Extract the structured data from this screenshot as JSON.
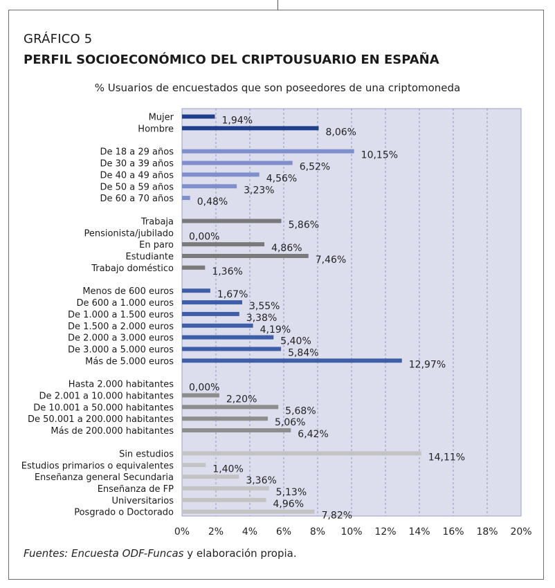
{
  "figure": {
    "number": "GRÁFICO 5",
    "title": "PERFIL SOCIOECONÓMICO DEL CRIPTOUSUARIO EN ESPAÑA",
    "subtitle": "% Usuarios de encuestados que son poseedores de una criptomoneda",
    "source_italic": "Fuentes: Encuesta ODF-Funcas",
    "source_rest": " y elaboración propia."
  },
  "chart_data": {
    "type": "bar",
    "orientation": "horizontal",
    "title": "% Usuarios de encuestados que son poseedores de una criptomoneda",
    "xlabel": "",
    "ylabel": "",
    "xlim": [
      0,
      20
    ],
    "x_ticks": [
      "0%",
      "2%",
      "4%",
      "6%",
      "8%",
      "10%",
      "12%",
      "14%",
      "16%",
      "18%",
      "20%"
    ],
    "grid": "vertical dashed",
    "value_format": "comma decimal, percent",
    "colors": {
      "plot_background": "#dcdeee",
      "grid": "#8e95bf",
      "sex": "#1f3f8c",
      "age": "#7f8fcc",
      "employment": "#7a7a7a",
      "income": "#3f5ea8",
      "municipality": "#8d8d8d",
      "education": "#c3c3c3"
    },
    "groups": [
      {
        "color_key": "sex",
        "categories": [
          "Mujer",
          "Hombre"
        ],
        "values": [
          1.94,
          8.06
        ]
      },
      {
        "color_key": "age",
        "categories": [
          "De 18 a 29 años",
          "De 30 a 39 años",
          "De 40 a 49 años",
          "De 50 a 59 años",
          "De 60 a 70 años"
        ],
        "values": [
          10.15,
          6.52,
          4.56,
          3.23,
          0.48
        ]
      },
      {
        "color_key": "employment",
        "categories": [
          "Trabaja",
          "Pensionista/jubilado",
          "En paro",
          "Estudiante",
          "Trabajo doméstico"
        ],
        "values": [
          5.86,
          0.0,
          4.86,
          7.46,
          1.36
        ]
      },
      {
        "color_key": "income",
        "categories": [
          "Menos de 600 euros",
          "De 600 a 1.000 euros",
          "De 1.000 a 1.500 euros",
          "De 1.500 a 2.000 euros",
          "De 2.000 a 3.000 euros",
          "De 3.000 a 5.000 euros",
          "Más de 5.000 euros"
        ],
        "values": [
          1.67,
          3.55,
          3.38,
          4.19,
          5.4,
          5.84,
          12.97
        ]
      },
      {
        "color_key": "municipality",
        "categories": [
          "Hasta 2.000 habitantes",
          "De 2.001 a 10.000 habitantes",
          "De 10.001 a 50.000 habitantes",
          "De 50.001 a 200.000 habitantes",
          "Más de 200.000 habitantes"
        ],
        "values": [
          0.0,
          2.2,
          5.68,
          5.06,
          6.42
        ]
      },
      {
        "color_key": "education",
        "categories": [
          "Sin estudios",
          "Estudios primarios o equivalentes",
          "Enseñanza general Secundaria",
          "Enseñanza de FP",
          "Universitarios",
          "Posgrado o Doctorado"
        ],
        "values": [
          14.11,
          1.4,
          3.36,
          5.13,
          4.96,
          7.82
        ]
      }
    ]
  }
}
